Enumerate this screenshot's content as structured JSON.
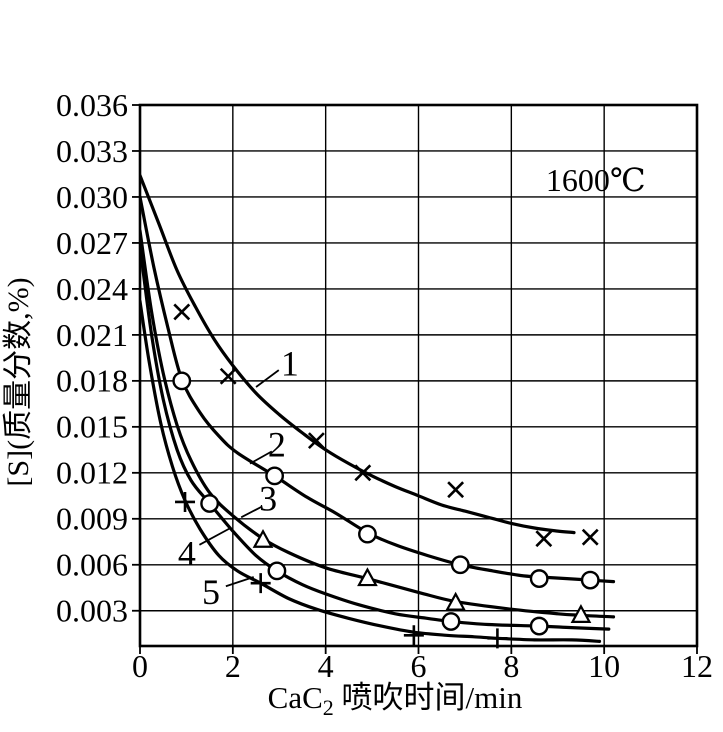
{
  "colors": {
    "ink": "#000000",
    "background": "#ffffff"
  },
  "chart_data": {
    "type": "line",
    "title": "",
    "annotation": {
      "text": "1600℃",
      "x": 9.82,
      "y": 0.0311
    },
    "xlabel": {
      "prefix": "CaC",
      "sub": "2",
      "suffix": " 喷吹时间/min"
    },
    "ylabel": "[S](质量分数,%)",
    "xlim": [
      0,
      12
    ],
    "ylim": [
      0.0007,
      0.036
    ],
    "grid": true,
    "legend_position": "none",
    "x_ticks": [
      {
        "v": 0,
        "label": "0"
      },
      {
        "v": 2,
        "label": "2"
      },
      {
        "v": 4,
        "label": "4"
      },
      {
        "v": 6,
        "label": "6"
      },
      {
        "v": 8,
        "label": "8"
      },
      {
        "v": 10,
        "label": "10"
      },
      {
        "v": 12,
        "label": "12"
      }
    ],
    "y_ticks": [
      {
        "v": 0.036,
        "label": "0.036"
      },
      {
        "v": 0.033,
        "label": "0.033"
      },
      {
        "v": 0.03,
        "label": "0.030"
      },
      {
        "v": 0.027,
        "label": "0.027"
      },
      {
        "v": 0.024,
        "label": "0.024"
      },
      {
        "v": 0.021,
        "label": "0.021"
      },
      {
        "v": 0.018,
        "label": "0.018"
      },
      {
        "v": 0.015,
        "label": "0.015"
      },
      {
        "v": 0.012,
        "label": "0.012"
      },
      {
        "v": 0.009,
        "label": "0.009"
      },
      {
        "v": 0.006,
        "label": "0.006"
      },
      {
        "v": 0.003,
        "label": "0.003"
      }
    ],
    "series": [
      {
        "name": "1",
        "marker": "x",
        "points": [
          [
            0.9,
            0.0225
          ],
          [
            1.9,
            0.0183
          ],
          [
            3.8,
            0.0141
          ],
          [
            4.8,
            0.012
          ],
          [
            6.8,
            0.0109
          ],
          [
            8.7,
            0.0077
          ],
          [
            9.7,
            0.0078
          ]
        ],
        "curve": [
          [
            0,
            0.0314
          ],
          [
            0.4,
            0.0283
          ],
          [
            0.8,
            0.0252
          ],
          [
            1.2,
            0.0228
          ],
          [
            1.6,
            0.0207
          ],
          [
            2,
            0.019
          ],
          [
            2.5,
            0.0172
          ],
          [
            3,
            0.0158
          ],
          [
            3.5,
            0.0146
          ],
          [
            4,
            0.0135
          ],
          [
            4.5,
            0.0126
          ],
          [
            5,
            0.0118
          ],
          [
            5.5,
            0.0111
          ],
          [
            6,
            0.0105
          ],
          [
            6.5,
            0.0099
          ],
          [
            7,
            0.0095
          ],
          [
            7.5,
            0.0091
          ],
          [
            8,
            0.0087
          ],
          [
            8.5,
            0.0084
          ],
          [
            9,
            0.0082
          ],
          [
            9.35,
            0.0081
          ]
        ],
        "label": {
          "text": "1",
          "x": 3.23,
          "y": 0.0192
        },
        "leader": {
          "x1": 2.99,
          "y1": 0.0187,
          "x2": 2.5,
          "y2": 0.0176
        }
      },
      {
        "name": "2",
        "marker": "o",
        "points": [
          [
            0.9,
            0.018
          ],
          [
            2.9,
            0.0118
          ],
          [
            4.9,
            0.008
          ],
          [
            6.9,
            0.006
          ],
          [
            8.6,
            0.0051
          ],
          [
            9.7,
            0.005
          ]
        ],
        "curve": [
          [
            0,
            0.03
          ],
          [
            0.3,
            0.0254
          ],
          [
            0.6,
            0.0215
          ],
          [
            0.9,
            0.0181
          ],
          [
            1.3,
            0.0159
          ],
          [
            1.7,
            0.0144
          ],
          [
            2.1,
            0.0133
          ],
          [
            2.9,
            0.0118
          ],
          [
            3.6,
            0.0104
          ],
          [
            4.2,
            0.0094
          ],
          [
            4.9,
            0.0081
          ],
          [
            5.5,
            0.0073
          ],
          [
            6.2,
            0.0066
          ],
          [
            6.9,
            0.006
          ],
          [
            7.6,
            0.0056
          ],
          [
            8.2,
            0.0053
          ],
          [
            8.6,
            0.0052
          ],
          [
            9.2,
            0.0051
          ],
          [
            9.7,
            0.005
          ],
          [
            10.2,
            0.0049
          ]
        ],
        "label": {
          "text": "2",
          "x": 2.95,
          "y": 0.0139
        },
        "leader": {
          "x1": 2.84,
          "y1": 0.0134,
          "x2": 2.37,
          "y2": 0.0126
        }
      },
      {
        "name": "3",
        "marker": "triangle",
        "points": [
          [
            2.65,
            0.0076
          ],
          [
            4.9,
            0.0051
          ],
          [
            6.8,
            0.0035
          ],
          [
            9.5,
            0.0027
          ]
        ],
        "curve": [
          [
            0,
            0.0278
          ],
          [
            0.25,
            0.0225
          ],
          [
            0.5,
            0.0185
          ],
          [
            0.8,
            0.0151
          ],
          [
            1.1,
            0.0128
          ],
          [
            1.5,
            0.0107
          ],
          [
            2,
            0.0092
          ],
          [
            2.65,
            0.0077
          ],
          [
            3.2,
            0.0068
          ],
          [
            4,
            0.0058
          ],
          [
            4.9,
            0.0051
          ],
          [
            6,
            0.0042
          ],
          [
            6.8,
            0.0036
          ],
          [
            8,
            0.0031
          ],
          [
            9,
            0.0028
          ],
          [
            9.5,
            0.0027
          ],
          [
            10.2,
            0.0026
          ]
        ],
        "label": {
          "text": "3",
          "x": 2.76,
          "y": 0.0104
        },
        "leader": {
          "x1": 2.63,
          "y1": 0.0098,
          "x2": 2.18,
          "y2": 0.0091
        }
      },
      {
        "name": "4",
        "marker": "o",
        "points": [
          [
            1.5,
            0.01
          ],
          [
            2.95,
            0.0056
          ],
          [
            6.7,
            0.0023
          ],
          [
            8.6,
            0.002
          ]
        ],
        "curve": [
          [
            0,
            0.0268
          ],
          [
            0.25,
            0.021
          ],
          [
            0.5,
            0.0168
          ],
          [
            0.8,
            0.0135
          ],
          [
            1.1,
            0.0115
          ],
          [
            1.5,
            0.01
          ],
          [
            2,
            0.0082
          ],
          [
            2.5,
            0.0066
          ],
          [
            2.95,
            0.0056
          ],
          [
            3.5,
            0.0047
          ],
          [
            4,
            0.0041
          ],
          [
            4.7,
            0.0034
          ],
          [
            5.5,
            0.0028
          ],
          [
            6.2,
            0.0025
          ],
          [
            6.7,
            0.0023
          ],
          [
            7.5,
            0.0021
          ],
          [
            8.6,
            0.002
          ],
          [
            9.3,
            0.0019
          ],
          [
            10.1,
            0.0018
          ]
        ],
        "label": {
          "text": "4",
          "x": 1.01,
          "y": 0.0068
        },
        "leader": {
          "x1": 1.28,
          "y1": 0.0073,
          "x2": 1.95,
          "y2": 0.0084
        }
      },
      {
        "name": "5",
        "marker": "plus",
        "points": [
          [
            0.97,
            0.0101
          ],
          [
            2.6,
            0.0048
          ],
          [
            5.9,
            0.0014
          ],
          [
            7.7,
            0.0012
          ]
        ],
        "curve": [
          [
            0,
            0.0232
          ],
          [
            0.2,
            0.0192
          ],
          [
            0.45,
            0.0152
          ],
          [
            0.7,
            0.0124
          ],
          [
            0.97,
            0.0102
          ],
          [
            1.3,
            0.0083
          ],
          [
            1.7,
            0.0066
          ],
          [
            2.1,
            0.0056
          ],
          [
            2.6,
            0.0048
          ],
          [
            3.2,
            0.0038
          ],
          [
            3.8,
            0.0031
          ],
          [
            4.5,
            0.0025
          ],
          [
            5.2,
            0.002
          ],
          [
            5.9,
            0.0016
          ],
          [
            6.6,
            0.0014
          ],
          [
            7.2,
            0.0013
          ],
          [
            7.7,
            0.0012
          ],
          [
            8.5,
            0.0011
          ],
          [
            9.3,
            0.0011
          ],
          [
            9.9,
            0.001
          ]
        ],
        "label": {
          "text": "5",
          "x": 1.53,
          "y": 0.0043
        },
        "leader": {
          "x1": 1.85,
          "y1": 0.0046,
          "x2": 2.45,
          "y2": 0.0052
        }
      }
    ]
  }
}
